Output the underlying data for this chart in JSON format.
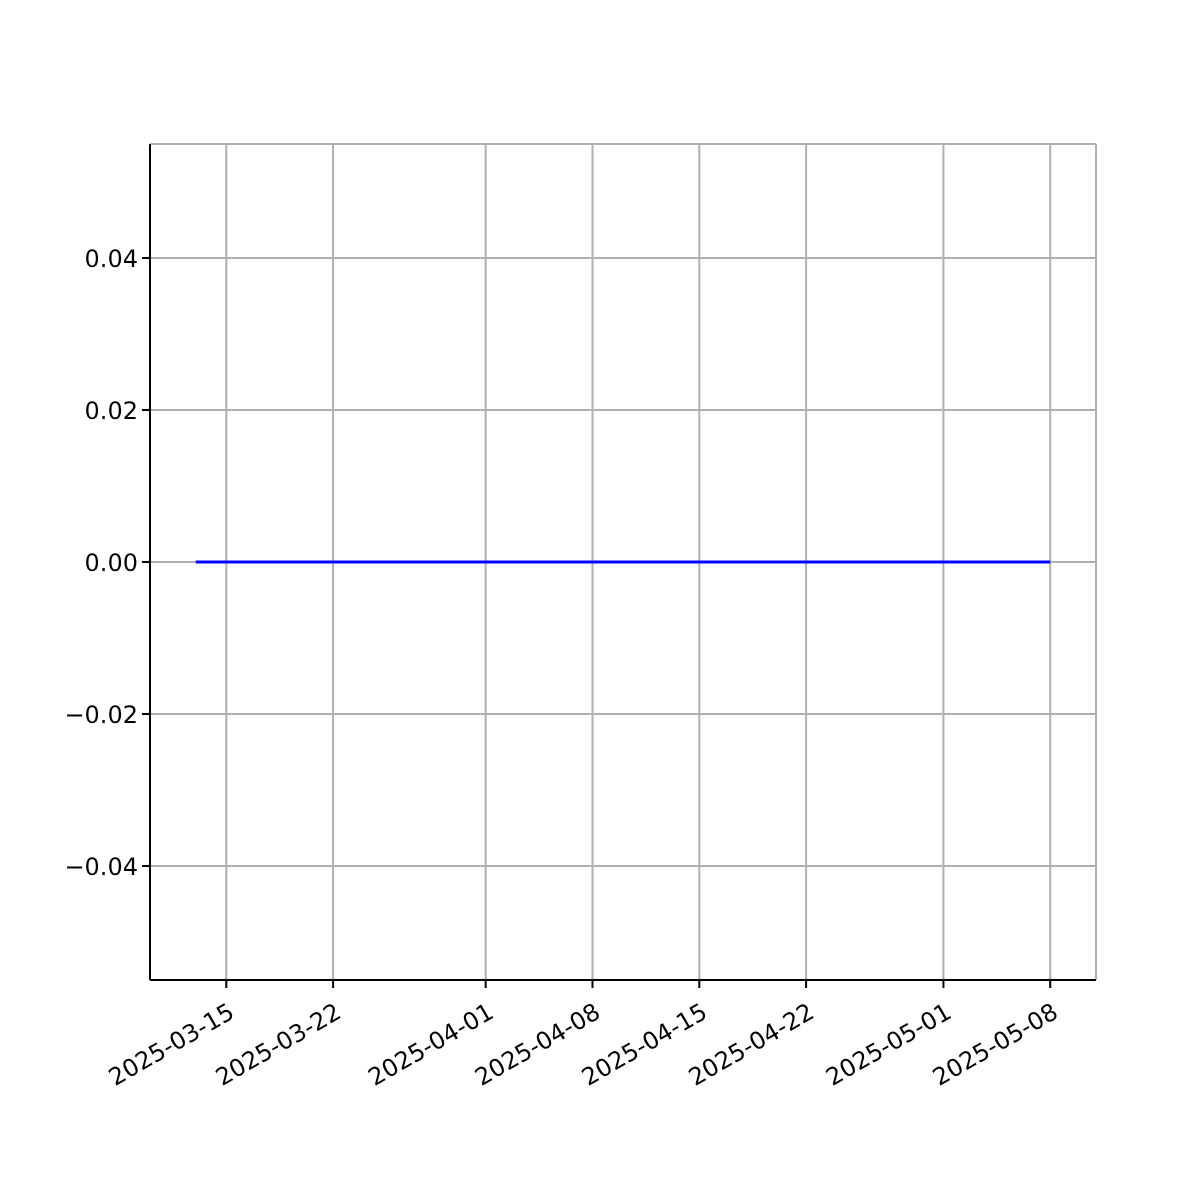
{
  "chart_data": {
    "type": "line",
    "x": [
      "2025-03-13",
      "2025-03-20",
      "2025-04-01",
      "2025-04-15",
      "2025-05-01",
      "2025-05-08"
    ],
    "series": [
      {
        "color": "#0000ff",
        "values": [
          0,
          0,
          0,
          0,
          0,
          0
        ]
      }
    ],
    "xlim": [
      "2025-03-10",
      "2025-05-11"
    ],
    "xticks": [
      "2025-03-15",
      "2025-03-22",
      "2025-04-01",
      "2025-04-08",
      "2025-04-15",
      "2025-04-22",
      "2025-05-01",
      "2025-05-08"
    ],
    "ylim": [
      -0.055,
      0.055
    ],
    "yticks": [
      {
        "value": -0.04,
        "label": "−0.04"
      },
      {
        "value": -0.02,
        "label": "−0.02"
      },
      {
        "value": 0,
        "label": "0.00"
      },
      {
        "value": 0.02,
        "label": "0.02"
      },
      {
        "value": 0.04,
        "label": "0.04"
      }
    ],
    "grid": true,
    "marker": "none",
    "line_style": "solid",
    "legend": false
  }
}
